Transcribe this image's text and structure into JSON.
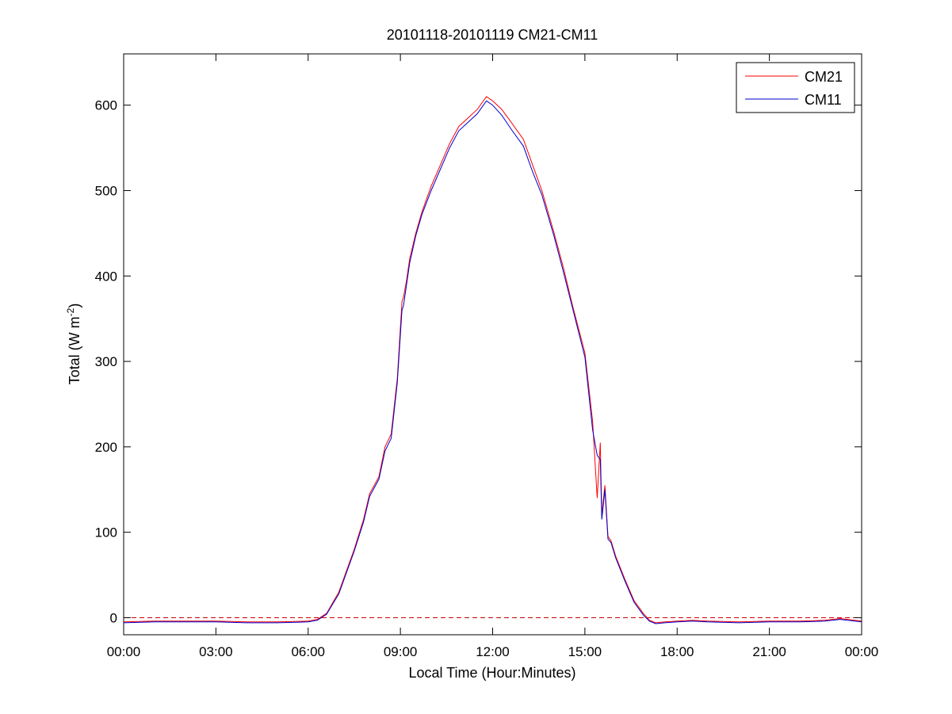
{
  "chart_data": {
    "type": "line",
    "title": "20101118-20101119 CM21-CM11",
    "xlabel": "Local Time (Hour:Minutes)",
    "ylabel": {
      "base": "Total (W m",
      "sup": "-2",
      "end": ")"
    },
    "xlim": [
      0,
      24
    ],
    "ylim": [
      -20,
      660
    ],
    "x_ticks": [
      0,
      3,
      6,
      9,
      12,
      15,
      18,
      21,
      24
    ],
    "x_tick_labels": [
      "00:00",
      "03:00",
      "06:00",
      "09:00",
      "12:00",
      "15:00",
      "18:00",
      "21:00",
      "00:00"
    ],
    "y_ticks": [
      0,
      100,
      200,
      300,
      400,
      500,
      600
    ],
    "y_tick_labels": [
      "0",
      "100",
      "200",
      "300",
      "400",
      "500",
      "600"
    ],
    "grid": false,
    "legend_position": "top-right",
    "reference_line": {
      "y": 0,
      "style": "dashed",
      "color": "#cc0000"
    },
    "series": [
      {
        "name": "CM21",
        "color": "#ff0000",
        "x": [
          0,
          1,
          2,
          3,
          4,
          5,
          6,
          6.3,
          6.6,
          7.0,
          7.5,
          7.8,
          8.0,
          8.3,
          8.5,
          8.7,
          8.9,
          9.05,
          9.1,
          9.2,
          9.3,
          9.5,
          9.7,
          10.0,
          10.3,
          10.6,
          10.9,
          11.2,
          11.5,
          11.8,
          12.0,
          12.3,
          12.6,
          13.0,
          13.3,
          13.6,
          14.0,
          14.3,
          14.6,
          15.0,
          15.25,
          15.4,
          15.5,
          15.55,
          15.65,
          15.75,
          15.85,
          16.0,
          16.3,
          16.6,
          16.9,
          17.1,
          17.3,
          17.6,
          18.0,
          18.5,
          19,
          20,
          21,
          22,
          22.8,
          23.3,
          24
        ],
        "y": [
          -5,
          -4,
          -4,
          -4,
          -5,
          -5,
          -4,
          -2,
          5,
          30,
          80,
          115,
          145,
          165,
          200,
          215,
          280,
          370,
          375,
          395,
          420,
          450,
          475,
          505,
          530,
          555,
          575,
          585,
          595,
          610,
          605,
          595,
          580,
          560,
          530,
          500,
          450,
          410,
          365,
          310,
          230,
          140,
          205,
          120,
          155,
          95,
          90,
          72,
          45,
          20,
          5,
          -3,
          -6,
          -5,
          -4,
          -3,
          -4,
          -5,
          -4,
          -4,
          -3,
          -1,
          -4
        ]
      },
      {
        "name": "CM11",
        "color": "#0000cc",
        "x": [
          0,
          1,
          2,
          3,
          4,
          5,
          6,
          6.3,
          6.6,
          7.0,
          7.5,
          7.8,
          8.0,
          8.3,
          8.5,
          8.7,
          8.9,
          9.05,
          9.1,
          9.2,
          9.3,
          9.5,
          9.7,
          10.0,
          10.3,
          10.6,
          10.9,
          11.2,
          11.5,
          11.8,
          12.0,
          12.3,
          12.6,
          13.0,
          13.3,
          13.6,
          14.0,
          14.3,
          14.6,
          15.0,
          15.25,
          15.4,
          15.5,
          15.55,
          15.65,
          15.75,
          15.85,
          16.0,
          16.3,
          16.6,
          16.9,
          17.1,
          17.3,
          17.6,
          18.0,
          18.5,
          19,
          20,
          21,
          22,
          22.8,
          23.3,
          24
        ],
        "y": [
          -6,
          -5,
          -5,
          -5,
          -6,
          -6,
          -5,
          -3,
          4,
          28,
          78,
          112,
          142,
          162,
          195,
          210,
          275,
          360,
          365,
          390,
          415,
          447,
          472,
          500,
          525,
          550,
          570,
          580,
          590,
          605,
          600,
          588,
          572,
          552,
          522,
          495,
          446,
          405,
          362,
          305,
          220,
          190,
          185,
          115,
          150,
          92,
          88,
          70,
          43,
          18,
          3,
          -4,
          -7,
          -6,
          -5,
          -4,
          -5,
          -6,
          -5,
          -5,
          -4,
          -2,
          -5
        ]
      }
    ]
  }
}
